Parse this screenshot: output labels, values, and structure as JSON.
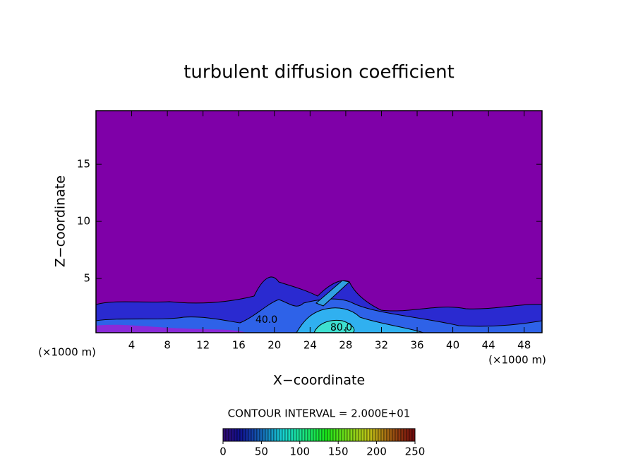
{
  "chart_data": {
    "type": "contour",
    "title": "turbulent diffusion coefficient",
    "x_label": "X−coordinate",
    "y_label": "Z−coordinate",
    "x_unit_label": "(×1000 m)",
    "y_unit_label": "(×1000 m)",
    "xlim": [
      0,
      50
    ],
    "xticks": [
      4,
      8,
      12,
      16,
      20,
      24,
      28,
      32,
      36,
      40,
      44,
      48
    ],
    "ylim": [
      0.25,
      19.7
    ],
    "yticks": [
      5,
      10,
      15
    ],
    "contour_labels": [
      "40.0",
      "80.0"
    ],
    "contour_interval": "CONTOUR INTERVAL = 2.000E+01",
    "colorbar_lim": [
      0,
      250
    ],
    "colorbar_ticks": [
      0,
      50,
      100,
      150,
      200,
      250
    ],
    "background_color": "#7f00a8"
  }
}
